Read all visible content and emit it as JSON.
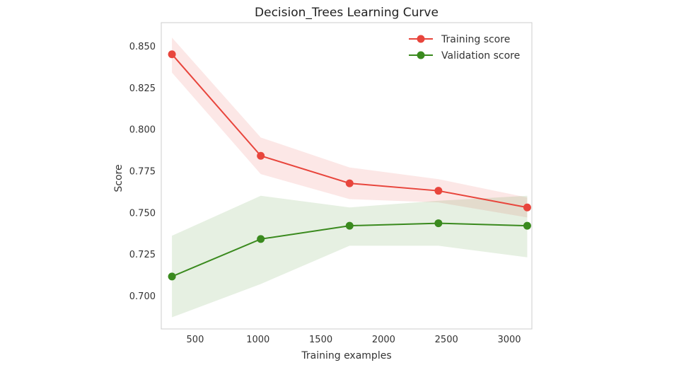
{
  "chart_data": {
    "type": "line",
    "title": "Decision_Trees Learning Curve",
    "xlabel": "Training examples",
    "ylabel": "Score",
    "xlim": [
      230,
      3180
    ],
    "ylim": [
      0.68,
      0.864
    ],
    "xticks": [
      500,
      1000,
      1500,
      2000,
      2500,
      3000
    ],
    "yticks": [
      0.7,
      0.725,
      0.75,
      0.775,
      0.8,
      0.825,
      0.85
    ],
    "ytick_labels": [
      "0.700",
      "0.725",
      "0.750",
      "0.775",
      "0.800",
      "0.825",
      "0.850"
    ],
    "grid": false,
    "legend_position": "top-right",
    "x": [
      315,
      1022,
      1729,
      2436,
      3143
    ],
    "series": [
      {
        "name": "Training score",
        "color": "#e8453c",
        "values": [
          0.845,
          0.784,
          0.7675,
          0.763,
          0.753
        ],
        "band_upper": [
          0.855,
          0.795,
          0.777,
          0.77,
          0.759
        ],
        "band_lower": [
          0.834,
          0.773,
          0.758,
          0.756,
          0.747
        ]
      },
      {
        "name": "Validation score",
        "color": "#3a8a1e",
        "values": [
          0.7115,
          0.734,
          0.742,
          0.7435,
          0.742
        ],
        "band_upper": [
          0.736,
          0.76,
          0.753,
          0.757,
          0.76
        ],
        "band_lower": [
          0.687,
          0.707,
          0.73,
          0.73,
          0.723
        ]
      }
    ]
  }
}
